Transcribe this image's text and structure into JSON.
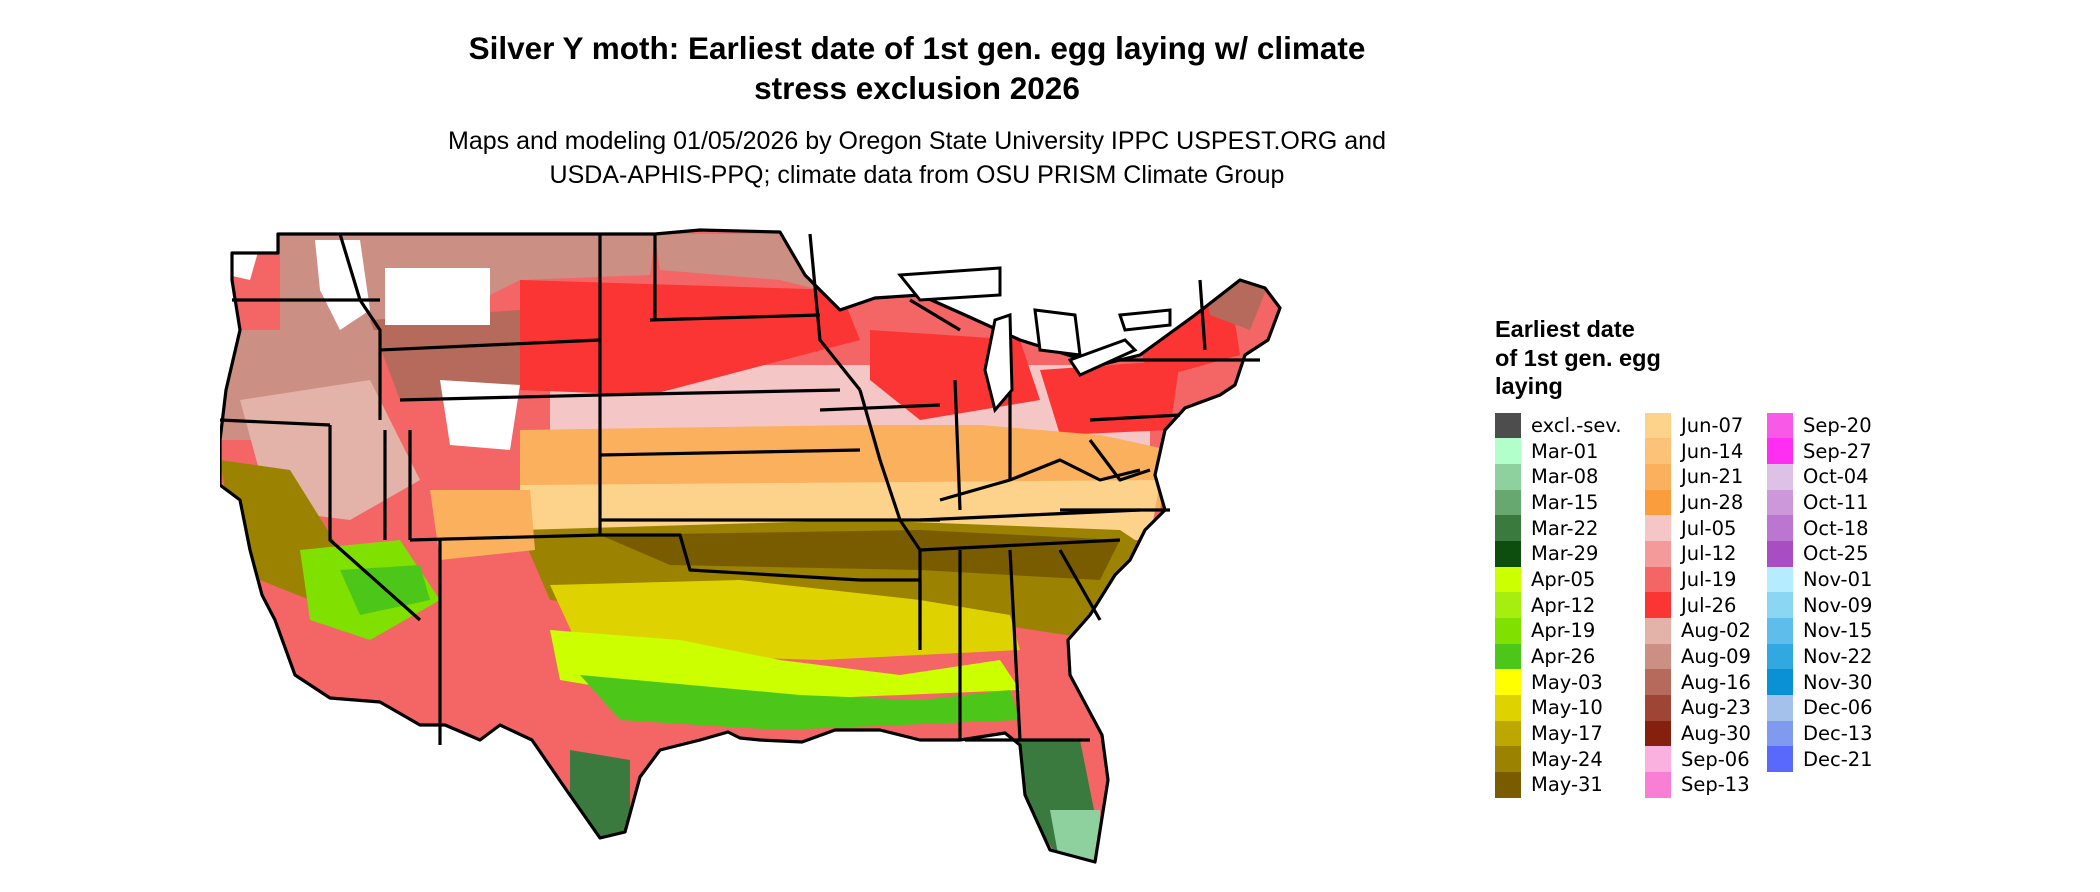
{
  "header": {
    "title_line1": "Silver Y moth: Earliest date of 1st gen. egg laying w/ climate",
    "title_line2": "stress exclusion 2026",
    "subtitle_line1": "Maps and modeling 01/05/2026 by Oregon State University IPPC USPEST.ORG and",
    "subtitle_line2": "USDA-APHIS-PPQ; climate data from OSU PRISM Climate Group"
  },
  "legend": {
    "title_line1": "Earliest date",
    "title_line2": "of 1st gen. egg",
    "title_line3": "laying",
    "columns": [
      [
        {
          "label": "excl.-sev.",
          "color": "#4d4d4d"
        },
        {
          "label": "Mar-01",
          "color": "#b3ffcc"
        },
        {
          "label": "Mar-08",
          "color": "#8fd19e"
        },
        {
          "label": "Mar-15",
          "color": "#67a870"
        },
        {
          "label": "Mar-22",
          "color": "#3b7a3e"
        },
        {
          "label": "Mar-29",
          "color": "#0d4d0d"
        },
        {
          "label": "Apr-05",
          "color": "#ccff00"
        },
        {
          "label": "Apr-12",
          "color": "#a6ee0f"
        },
        {
          "label": "Apr-19",
          "color": "#80e000"
        },
        {
          "label": "Apr-26",
          "color": "#4cc719"
        },
        {
          "label": "May-03",
          "color": "#ffff00"
        },
        {
          "label": "May-10",
          "color": "#ded300"
        },
        {
          "label": "May-17",
          "color": "#bca800"
        },
        {
          "label": "May-24",
          "color": "#9b8200"
        },
        {
          "label": "May-31",
          "color": "#7a5c00"
        }
      ],
      [
        {
          "label": "Jun-07",
          "color": "#fdd38c"
        },
        {
          "label": "Jun-14",
          "color": "#fcc378"
        },
        {
          "label": "Jun-21",
          "color": "#fab05c"
        },
        {
          "label": "Jun-28",
          "color": "#f99d3d"
        },
        {
          "label": "Jul-05",
          "color": "#f4c6c6"
        },
        {
          "label": "Jul-12",
          "color": "#f59a9a"
        },
        {
          "label": "Jul-19",
          "color": "#f46565"
        },
        {
          "label": "Jul-26",
          "color": "#fb3434"
        },
        {
          "label": "Aug-02",
          "color": "#e3b3a9"
        },
        {
          "label": "Aug-09",
          "color": "#cc8f83"
        },
        {
          "label": "Aug-16",
          "color": "#b56a5c"
        },
        {
          "label": "Aug-23",
          "color": "#9e4535"
        },
        {
          "label": "Aug-30",
          "color": "#86200e"
        },
        {
          "label": "Sep-06",
          "color": "#fbb1df"
        },
        {
          "label": "Sep-13",
          "color": "#f97fd4"
        }
      ],
      [
        {
          "label": "Sep-20",
          "color": "#f859e6"
        },
        {
          "label": "Sep-27",
          "color": "#ff2ef2"
        },
        {
          "label": "Oct-04",
          "color": "#ddc1e6"
        },
        {
          "label": "Oct-11",
          "color": "#cc98da"
        },
        {
          "label": "Oct-18",
          "color": "#bb76d1"
        },
        {
          "label": "Oct-25",
          "color": "#a84dc2"
        },
        {
          "label": "Nov-01",
          "color": "#b5ecff"
        },
        {
          "label": "Nov-09",
          "color": "#8ad6f3"
        },
        {
          "label": "Nov-15",
          "color": "#5ebdeb"
        },
        {
          "label": "Nov-22",
          "color": "#32a8e0"
        },
        {
          "label": "Nov-30",
          "color": "#0a90d4"
        },
        {
          "label": "Dec-06",
          "color": "#a3c1ea"
        },
        {
          "label": "Dec-13",
          "color": "#7f9aef"
        },
        {
          "label": "Dec-21",
          "color": "#5969fb"
        }
      ]
    ]
  },
  "map_colors": {
    "state_border": "#000000",
    "north_background": "#f46565",
    "hot_red": "#fb3434",
    "pale_pink": "#f4c6c6",
    "mid_pink": "#f59a9a",
    "brown_light": "#cc8f83",
    "brown_dark": "#9e4535",
    "snow_white": "#ffffff",
    "orange": "#fab05c",
    "orange_light": "#fdd38c",
    "olive": "#9b8200",
    "olive_dark": "#7a5c00",
    "yellow": "#ded300",
    "lime": "#ccff00",
    "green": "#4cc719",
    "green_dark": "#3b7a3e",
    "green_pale": "#8fd19e"
  }
}
